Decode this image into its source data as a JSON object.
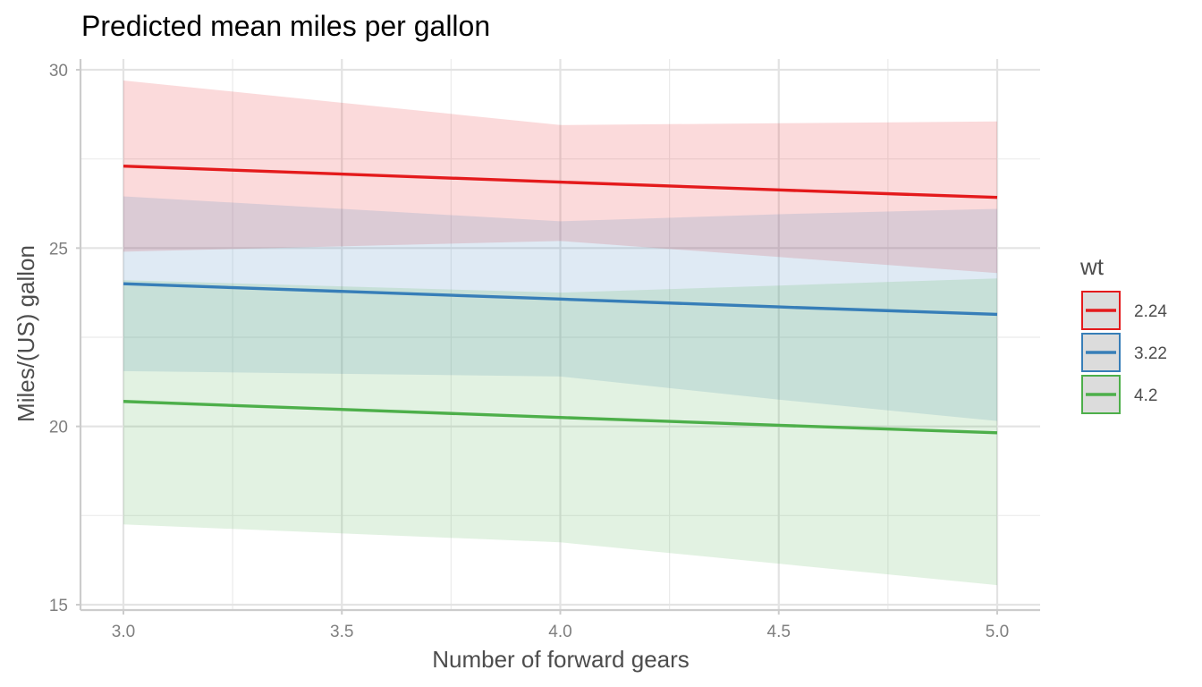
{
  "chart_data": {
    "type": "line",
    "title": "Predicted mean miles per gallon",
    "xlabel": "Number of forward gears",
    "ylabel": "Miles/(US) gallon",
    "xlim": [
      2.9,
      5.1
    ],
    "ylim": [
      14.8,
      30.3
    ],
    "x_ticks": [
      3.0,
      3.5,
      4.0,
      4.5,
      5.0
    ],
    "x_tick_labels": [
      "3.0",
      "3.5",
      "4.0",
      "4.5",
      "5.0"
    ],
    "y_ticks": [
      15,
      20,
      25,
      30
    ],
    "y_tick_labels": [
      "15",
      "20",
      "25",
      "30"
    ],
    "grid": true,
    "legend": {
      "title": "wt",
      "position": "right"
    },
    "series": [
      {
        "name": "2.24",
        "color": "#e41a1c",
        "x": [
          3,
          4,
          4.5,
          5
        ],
        "y": [
          27.3,
          26.85,
          26.63,
          26.42
        ],
        "lower": [
          24.9,
          25.2,
          24.75,
          24.3
        ],
        "upper": [
          29.7,
          28.45,
          28.5,
          28.55
        ]
      },
      {
        "name": "3.22",
        "color": "#377eb8",
        "x": [
          3,
          4,
          4.5,
          5
        ],
        "y": [
          24.0,
          23.57,
          23.35,
          23.14
        ],
        "lower": [
          21.55,
          21.4,
          20.75,
          20.15
        ],
        "upper": [
          26.45,
          25.75,
          25.95,
          26.1
        ]
      },
      {
        "name": "4.2",
        "color": "#4daf4a",
        "x": [
          3,
          4,
          4.5,
          5
        ],
        "y": [
          20.7,
          20.25,
          20.03,
          19.82
        ],
        "lower": [
          17.25,
          16.75,
          16.15,
          15.55
        ],
        "upper": [
          24.1,
          23.75,
          23.95,
          24.15
        ]
      }
    ]
  }
}
